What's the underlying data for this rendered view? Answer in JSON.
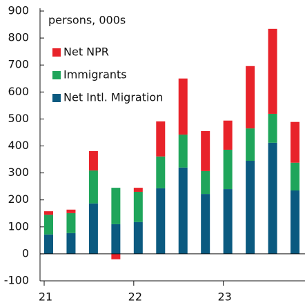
{
  "chart_data": {
    "type": "bar",
    "stacked": true,
    "annotation": "persons, 000s",
    "categories": [
      "21",
      null,
      null,
      null,
      "22",
      null,
      null,
      null,
      "23",
      null,
      null,
      null
    ],
    "series": [
      {
        "name": "Net Intl. Migration",
        "color": "#0b5a80",
        "values": [
          72,
          77,
          187,
          110,
          118,
          243,
          320,
          222,
          240,
          345,
          412,
          235
        ]
      },
      {
        "name": "Immigrants",
        "color": "#1fa55b",
        "values": [
          73,
          74,
          122,
          135,
          112,
          118,
          122,
          85,
          146,
          120,
          107,
          103
        ]
      },
      {
        "name": "Net NPR",
        "color": "#e8232a",
        "values": [
          13,
          13,
          72,
          -20,
          15,
          130,
          208,
          148,
          108,
          231,
          315,
          151
        ]
      }
    ],
    "ylim": [
      -100,
      900
    ],
    "yticks": [
      -100,
      0,
      100,
      200,
      300,
      400,
      500,
      600,
      700,
      800,
      900
    ],
    "legend": "upper left"
  }
}
